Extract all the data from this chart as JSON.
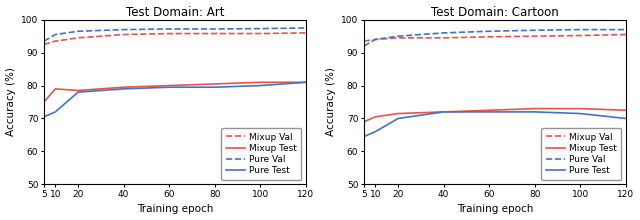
{
  "epochs": [
    5,
    10,
    20,
    40,
    60,
    80,
    100,
    120
  ],
  "art": {
    "mixup_val": [
      92.5,
      93.5,
      94.5,
      95.5,
      95.8,
      95.8,
      95.8,
      96.0
    ],
    "mixup_test": [
      75.0,
      79.0,
      78.5,
      79.5,
      80.0,
      80.5,
      81.0,
      81.0
    ],
    "pure_val": [
      93.5,
      95.5,
      96.5,
      97.0,
      97.2,
      97.2,
      97.3,
      97.5
    ],
    "pure_test": [
      70.5,
      72.0,
      78.0,
      79.0,
      79.5,
      79.5,
      80.0,
      81.0
    ]
  },
  "cartoon": {
    "mixup_val": [
      93.5,
      94.0,
      94.5,
      94.5,
      94.8,
      95.0,
      95.2,
      95.5
    ],
    "mixup_test": [
      69.0,
      70.5,
      71.5,
      72.0,
      72.5,
      73.0,
      73.0,
      72.5
    ],
    "pure_val": [
      92.0,
      94.0,
      95.0,
      96.0,
      96.5,
      96.8,
      97.0,
      97.0
    ],
    "pure_test": [
      64.5,
      66.0,
      70.0,
      72.0,
      72.0,
      72.0,
      71.5,
      70.0
    ]
  },
  "color_red": "#e8534a",
  "color_blue": "#4472c4",
  "ylim": [
    50,
    100
  ],
  "yticks": [
    50,
    60,
    70,
    80,
    90,
    100
  ],
  "xticks": [
    5,
    10,
    20,
    40,
    60,
    80,
    100,
    120
  ],
  "xlabel": "Training epoch",
  "ylabel": "Accuracy (%)",
  "title_art": "Test Domain: Art",
  "title_cartoon": "Test Domain: Cartoon",
  "legend_labels": [
    "Mixup Val",
    "Mixup Test",
    "Pure Val",
    "Pure Test"
  ]
}
